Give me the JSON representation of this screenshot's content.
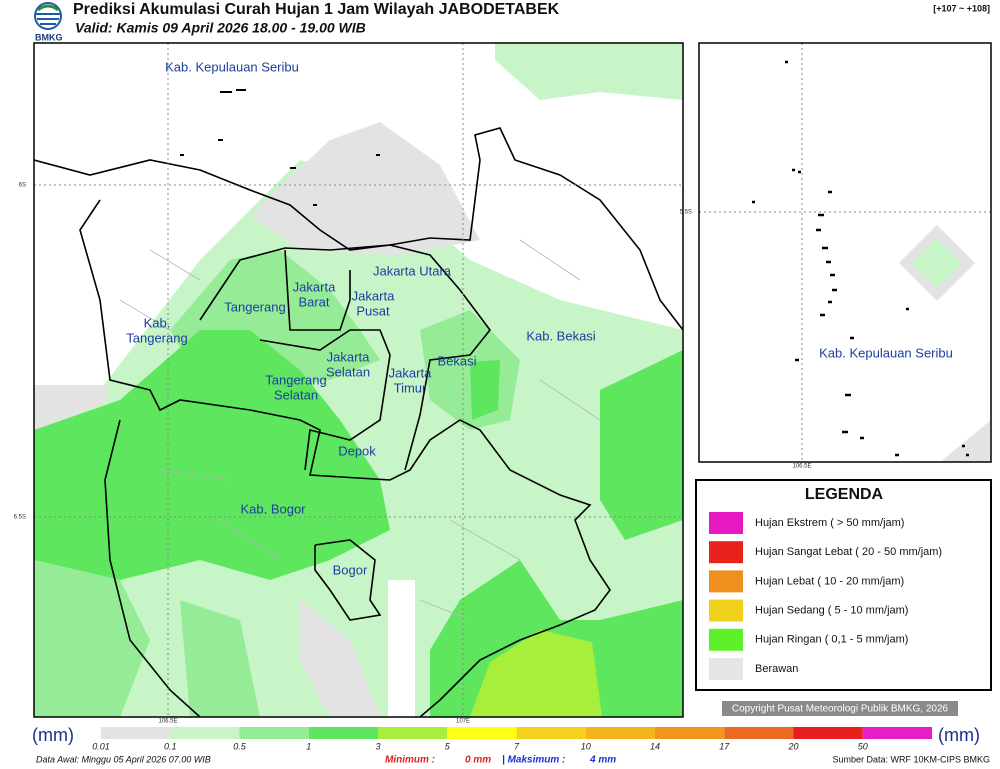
{
  "header": {
    "title": "Prediksi Akumulasi Curah Hujan 1 Jam Wilayah JABODETABEK",
    "subtitle": "Valid: Kamis 09 April 2026 18.00 - 19.00 WIB",
    "logo": "BMKG",
    "range": "[+107 ~ +108]"
  },
  "map": {
    "labels": [
      {
        "lines": [
          "Kab. Kepulauan Seribu"
        ]
      },
      {
        "lines": [
          "Jakarta Utara"
        ]
      },
      {
        "lines": [
          "Jakarta",
          "Barat"
        ]
      },
      {
        "lines": [
          "Jakarta",
          "Pusat"
        ]
      },
      {
        "lines": [
          "Tangerang"
        ]
      },
      {
        "lines": [
          "Kab.",
          "Tangerang"
        ]
      },
      {
        "lines": [
          "Kab. Bekasi"
        ]
      },
      {
        "lines": [
          "Jakarta",
          "Selatan"
        ]
      },
      {
        "lines": [
          "Bekasi"
        ]
      },
      {
        "lines": [
          "Jakarta",
          "Timur"
        ]
      },
      {
        "lines": [
          "Tangerang",
          "Selatan"
        ]
      },
      {
        "lines": [
          "Depok"
        ]
      },
      {
        "lines": [
          "Kab. Bogor"
        ]
      },
      {
        "lines": [
          "Bogor"
        ]
      }
    ],
    "grid_labels": [
      "6S",
      "6.5S",
      "106.5E",
      "107E"
    ]
  },
  "inset": {
    "label": "Kab. Kepulauan Seribu",
    "grid_labels": [
      "5.5S",
      "106.5E"
    ]
  },
  "legend": {
    "title": "LEGENDA",
    "items": [
      {
        "label": "Hujan Ekstrem ( > 50 mm/jam)",
        "color": "#e619c3"
      },
      {
        "label": "Hujan Sangat Lebat ( 20 - 50 mm/jam)",
        "color": "#e8231e"
      },
      {
        "label": "Hujan Lebat ( 10 - 20 mm/jam)",
        "color": "#ef8f1e"
      },
      {
        "label": "Hujan Sedang ( 5 - 10 mm/jam)",
        "color": "#f0d21e"
      },
      {
        "label": "Hujan Ringan ( 0,1 - 5 mm/jam)",
        "color": "#5ef028"
      },
      {
        "label": "Berawan",
        "color": "#e6e6e6"
      }
    ]
  },
  "copyright": "Copyright Pusat Meteorologi Publik BMKG, 2026",
  "colorbar": {
    "unit": "(mm)",
    "segments": [
      {
        "label": "0.01",
        "color": "#e3e3e3"
      },
      {
        "label": "0.1",
        "color": "#c8f5c8"
      },
      {
        "label": "0.5",
        "color": "#96ec96"
      },
      {
        "label": "1",
        "color": "#5ee65e"
      },
      {
        "label": "3",
        "color": "#a8ef3c"
      },
      {
        "label": "5",
        "color": "#ffff14"
      },
      {
        "label": "7",
        "color": "#f2d21e"
      },
      {
        "label": "10",
        "color": "#f5b41e"
      },
      {
        "label": "14",
        "color": "#f0961e"
      },
      {
        "label": "17",
        "color": "#ea6a22"
      },
      {
        "label": "20",
        "color": "#e61e1e"
      },
      {
        "label": "50",
        "color": "#e61ec8"
      }
    ]
  },
  "footer": {
    "data_awal": "Data Awal: Minggu 05 April 2026 07.00 WIB",
    "min_label": "Minimum :",
    "min_value": "0 mm",
    "max_label": "| Maksimum :",
    "max_value": "4 mm",
    "source": "Sumber Data: WRF 10KM-CIPS BMKG"
  }
}
